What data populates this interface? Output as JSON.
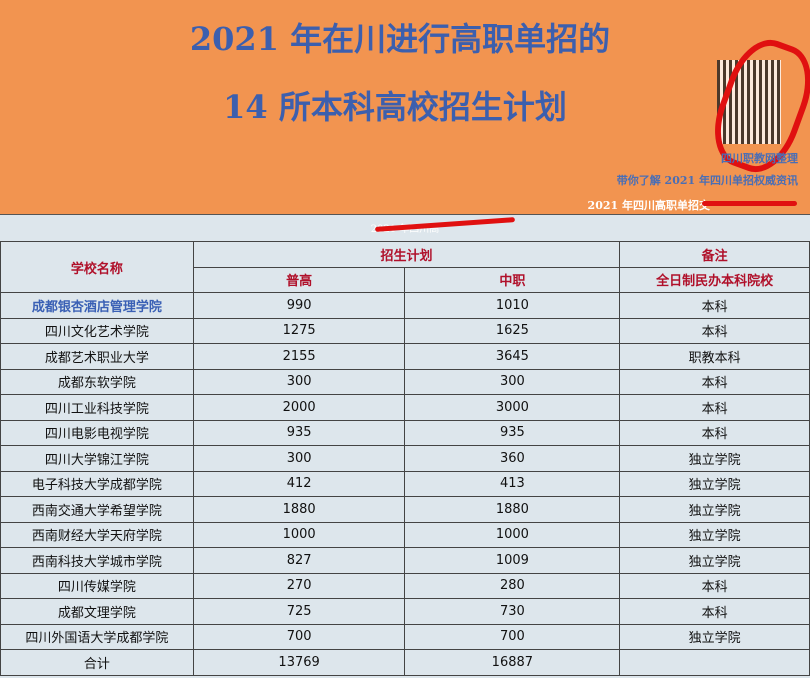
{
  "header": {
    "title_line1": "2021 年在川进行高职单招的",
    "title_line2": "14 所本科高校招生计划",
    "credit": "四川职教网整理",
    "promo": "带你了解 2021 年四川单招权威资讯",
    "group": "2021 年四川高职单招交"
  },
  "subtitle": "2021 年四川高",
  "table": {
    "col_school": "学校名称",
    "col_plan": "招生计划",
    "col_note": "备注",
    "sub_pugao": "普高",
    "sub_zhongzhi": "中职",
    "sub_note": "全日制民办本科院校",
    "rows": [
      [
        "成都银杏酒店管理学院",
        "990",
        "1010",
        "本科"
      ],
      [
        "四川文化艺术学院",
        "1275",
        "1625",
        "本科"
      ],
      [
        "成都艺术职业大学",
        "2155",
        "3645",
        "职教本科"
      ],
      [
        "成都东软学院",
        "300",
        "300",
        "本科"
      ],
      [
        "四川工业科技学院",
        "2000",
        "3000",
        "本科"
      ],
      [
        "四川电影电视学院",
        "935",
        "935",
        "本科"
      ],
      [
        "四川大学锦江学院",
        "300",
        "360",
        "独立学院"
      ],
      [
        "电子科技大学成都学院",
        "412",
        "413",
        "独立学院"
      ],
      [
        "西南交通大学希望学院",
        "1880",
        "1880",
        "独立学院"
      ],
      [
        "西南财经大学天府学院",
        "1000",
        "1000",
        "独立学院"
      ],
      [
        "西南科技大学城市学院",
        "827",
        "1009",
        "独立学院"
      ],
      [
        "四川传媒学院",
        "270",
        "280",
        "本科"
      ],
      [
        "成都文理学院",
        "725",
        "730",
        "本科"
      ],
      [
        "四川外国语大学成都学院",
        "700",
        "700",
        "独立学院"
      ]
    ],
    "total": [
      "合计",
      "13769",
      "16887",
      ""
    ]
  }
}
